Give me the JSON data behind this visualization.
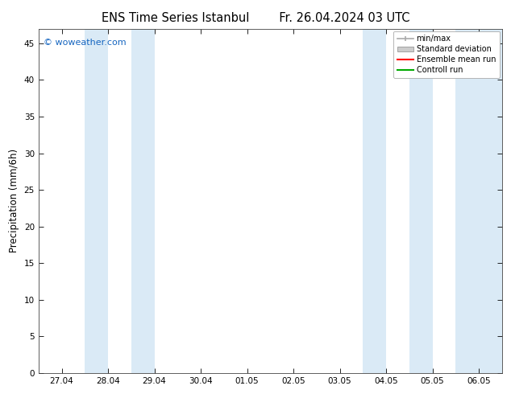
{
  "title_left": "ENS Time Series Istanbul",
  "title_right": "Fr. 26.04.2024 03 UTC",
  "ylabel": "Precipitation (mm/6h)",
  "ylim": [
    0,
    47
  ],
  "yticks": [
    0,
    5,
    10,
    15,
    20,
    25,
    30,
    35,
    40,
    45
  ],
  "xtick_labels": [
    "27.04",
    "28.04",
    "29.04",
    "30.04",
    "01.05",
    "02.05",
    "03.05",
    "04.05",
    "05.05",
    "06.05"
  ],
  "xtick_positions": [
    0,
    1,
    2,
    3,
    4,
    5,
    6,
    7,
    8,
    9
  ],
  "xlim": [
    -0.5,
    9.5
  ],
  "shaded_ranges": [
    [
      0.5,
      1.0
    ],
    [
      1.5,
      2.0
    ],
    [
      6.5,
      7.0
    ],
    [
      7.5,
      8.0
    ],
    [
      8.5,
      9.5
    ]
  ],
  "band_color": "#daeaf6",
  "background_color": "#ffffff",
  "watermark": "© woweather.com",
  "watermark_color": "#1565c0",
  "legend_labels": [
    "min/max",
    "Standard deviation",
    "Ensemble mean run",
    "Controll run"
  ],
  "legend_line_colors": [
    "#aaaaaa",
    "#cccccc",
    "#ff0000",
    "#00aa00"
  ],
  "title_fontsize": 10.5,
  "tick_fontsize": 7.5,
  "ylabel_fontsize": 8.5,
  "legend_fontsize": 7,
  "figsize": [
    6.34,
    4.9
  ],
  "dpi": 100
}
